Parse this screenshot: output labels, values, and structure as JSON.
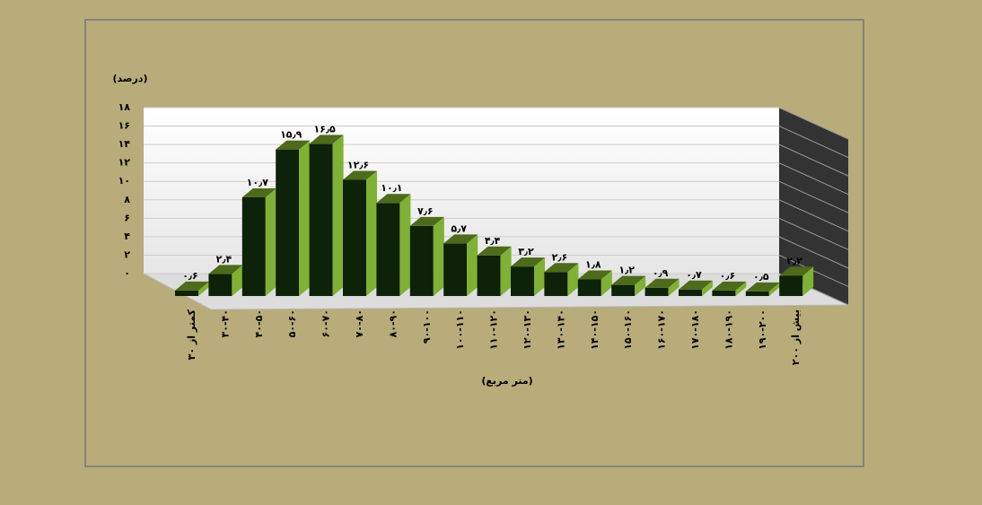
{
  "chart_data": {
    "type": "bar3d",
    "y_label": "(درصد)",
    "x_label": "(متر مربع)",
    "categories": [
      "کمتر از ۳۰",
      "۳۰-۴۰",
      "۴۰-۵۰",
      "۵۰-۶۰",
      "۶۰-۷۰",
      "۷۰-۸۰",
      "۸۰-۹۰",
      "۹۰-۱۰۰",
      "۱۰۰-۱۱۰",
      "۱۱۰-۱۲۰",
      "۱۲۰-۱۳۰",
      "۱۳۰-۱۴۰",
      "۱۴۰-۱۵۰",
      "۱۵۰-۱۶۰",
      "۱۶۰-۱۷۰",
      "۱۷۰-۱۸۰",
      "۱۸۰-۱۹۰",
      "۱۹۰-۲۰۰",
      "بیش از ۲۰۰"
    ],
    "values": [
      0.6,
      2.4,
      10.7,
      15.9,
      16.5,
      12.6,
      10.1,
      7.6,
      5.7,
      4.4,
      3.2,
      2.6,
      1.8,
      1.2,
      0.9,
      0.7,
      0.6,
      0.5,
      2.2
    ],
    "value_labels": [
      "۰٫۶",
      "۲٫۴",
      "۱۰٫۷",
      "۱۵٫۹",
      "۱۶٫۵",
      "۱۲٫۶",
      "۱۰٫۱",
      "۷٫۶",
      "۵٫۷",
      "۴٫۴",
      "۳٫۲",
      "۲٫۶",
      "۱٫۸",
      "۱٫۲",
      "۰٫۹",
      "۰٫۷",
      "۰٫۶",
      "۰٫۵",
      "۲٫۲"
    ],
    "color": "#7fb135",
    "ylim": [
      0,
      18
    ],
    "yticks": [
      {
        "value": 0,
        "label": "۰"
      },
      {
        "value": 2,
        "label": "۲"
      },
      {
        "value": 4,
        "label": "۴"
      },
      {
        "value": 6,
        "label": "۶"
      },
      {
        "value": 8,
        "label": "۸"
      },
      {
        "value": 10,
        "label": "۱۰"
      },
      {
        "value": 12,
        "label": "۱۲"
      },
      {
        "value": 14,
        "label": "۱۴"
      },
      {
        "value": 16,
        "label": "۱۶"
      },
      {
        "value": 18,
        "label": "۱۸"
      }
    ],
    "grid": true
  }
}
